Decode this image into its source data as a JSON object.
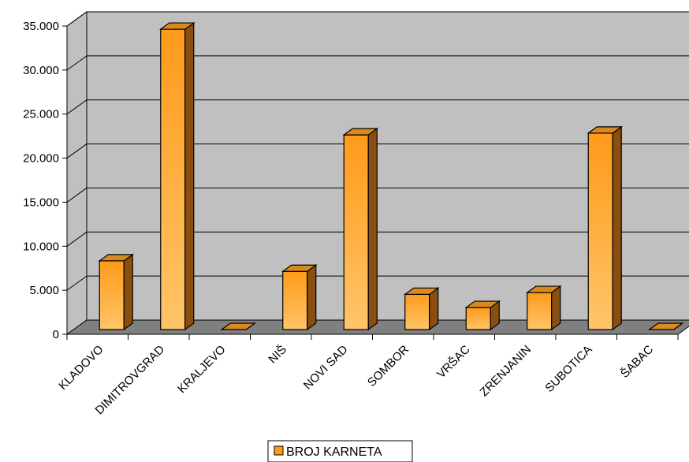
{
  "chart_data": {
    "type": "bar",
    "title": "",
    "xlabel": "",
    "ylabel": "",
    "categories": [
      "KLADOVO",
      "DIMITROVGRAD",
      "KRALJEVO",
      "NIŠ",
      "NOVI SAD",
      "SOMBOR",
      "VRŠAC",
      "ZRENJANIN",
      "SUBOTICA",
      "ŠABAC"
    ],
    "series": [
      {
        "name": "BROJ KARNETA",
        "values": [
          7800,
          34100,
          0,
          6600,
          22100,
          4000,
          2500,
          4200,
          22300,
          0
        ]
      }
    ],
    "ylim": [
      0,
      35000
    ],
    "yticks": [
      0,
      5000,
      10000,
      15000,
      20000,
      25000,
      30000,
      35000
    ],
    "ytick_labels": [
      "0",
      "5.000",
      "10.000",
      "15.000",
      "20.000",
      "25.000",
      "30.000",
      "35.000"
    ],
    "grid": true,
    "legend_position": "bottom",
    "style": "3d-column",
    "colors": {
      "bar_front_top": "#ff9a1a",
      "bar_front_bottom": "#ffc56a",
      "bar_side": "#8a4f10",
      "bar_top": "#d88a20",
      "wall": "#c0c0c0",
      "floor": "#808080"
    }
  }
}
